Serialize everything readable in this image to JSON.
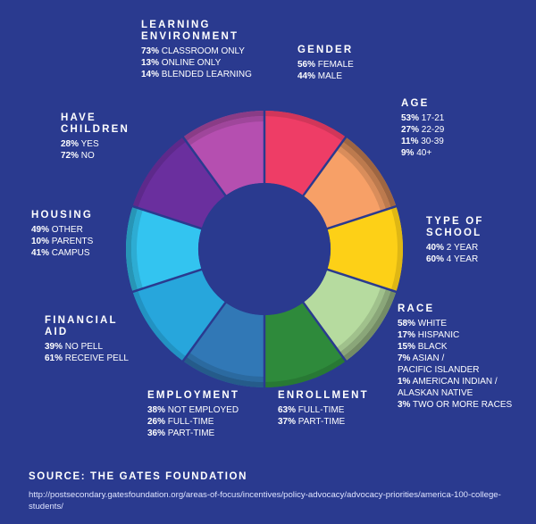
{
  "chart_data": {
    "type": "pie",
    "segments": [
      {
        "title": [
          "GENDER"
        ],
        "color": "#ee3d66",
        "items": [
          {
            "pct": "56%",
            "label": "FEMALE"
          },
          {
            "pct": "44%",
            "label": "MALE"
          }
        ]
      },
      {
        "title": [
          "AGE"
        ],
        "color": "#f7a067",
        "items": [
          {
            "pct": "53%",
            "label": "17-21"
          },
          {
            "pct": "27%",
            "label": "22-29"
          },
          {
            "pct": "11%",
            "label": "30-39"
          },
          {
            "pct": "9%",
            "label": "40+"
          }
        ]
      },
      {
        "title": [
          "TYPE OF",
          "SCHOOL"
        ],
        "color": "#fdd017",
        "items": [
          {
            "pct": "40%",
            "label": "2 YEAR"
          },
          {
            "pct": "60%",
            "label": "4 YEAR"
          }
        ]
      },
      {
        "title": [
          "RACE"
        ],
        "color": "#b6db9f",
        "items": [
          {
            "pct": "58%",
            "label": "WHITE"
          },
          {
            "pct": "17%",
            "label": "HISPANIC"
          },
          {
            "pct": "15%",
            "label": "BLACK"
          },
          {
            "pct": "7%",
            "label": "ASIAN /",
            "label2": "PACIFIC ISLANDER"
          },
          {
            "pct": "1%",
            "label": "AMERICAN INDIAN /",
            "label2": "ALASKAN NATIVE"
          },
          {
            "pct": "3%",
            "label": "TWO OR MORE RACES"
          }
        ]
      },
      {
        "title": [
          "ENROLLMENT"
        ],
        "color": "#2e8a3b",
        "items": [
          {
            "pct": "63%",
            "label": "FULL-TIME"
          },
          {
            "pct": "37%",
            "label": "PART-TIME"
          }
        ]
      },
      {
        "title": [
          "EMPLOYMENT"
        ],
        "color": "#3178b6",
        "items": [
          {
            "pct": "38%",
            "label": "NOT EMPLOYED"
          },
          {
            "pct": "26%",
            "label": "FULL-TIME"
          },
          {
            "pct": "36%",
            "label": "PART-TIME"
          }
        ]
      },
      {
        "title": [
          "FINANCIAL",
          "AID"
        ],
        "color": "#27a6dc",
        "items": [
          {
            "pct": "39%",
            "label": "NO PELL"
          },
          {
            "pct": "61%",
            "label": "RECEIVE PELL"
          }
        ]
      },
      {
        "title": [
          "HOUSING"
        ],
        "color": "#33c4f0",
        "items": [
          {
            "pct": "49%",
            "label": "OTHER"
          },
          {
            "pct": "10%",
            "label": "PARENTS"
          },
          {
            "pct": "41%",
            "label": "CAMPUS"
          }
        ]
      },
      {
        "title": [
          "HAVE",
          "CHILDREN"
        ],
        "color": "#6a2f9e",
        "items": [
          {
            "pct": "28%",
            "label": "YES"
          },
          {
            "pct": "72%",
            "label": "NO"
          }
        ]
      },
      {
        "title": [
          "LEARNING",
          "ENVIRONMENT"
        ],
        "color": "#b54fb0",
        "items": [
          {
            "pct": "73%",
            "label": "CLASSROOM ONLY"
          },
          {
            "pct": "13%",
            "label": "ONLINE ONLY"
          },
          {
            "pct": "14%",
            "label": "BLENDED LEARNING"
          }
        ]
      }
    ]
  },
  "source": {
    "label": "SOURCE: THE GATES FOUNDATION",
    "url": "http://postsecondary.gatesfoundation.org/areas-of-focus/incentives/policy-advocacy/advocacy-priorities/america-100-college-students/"
  },
  "colors": {
    "background": "#2a3a8f",
    "divider": "#2a3a8f"
  }
}
